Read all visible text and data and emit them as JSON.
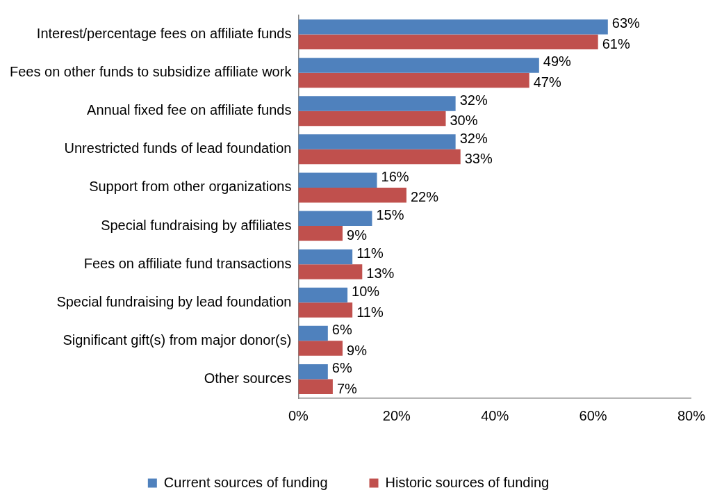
{
  "chart_data": {
    "type": "bar",
    "orientation": "horizontal",
    "categories": [
      "Interest/percentage fees on affiliate funds",
      "Fees on other funds to subsidize affiliate work",
      "Annual fixed fee on affiliate funds",
      "Unrestricted funds of lead foundation",
      "Support from other organizations",
      "Special fundraising by affiliates",
      "Fees on affiliate fund transactions",
      "Special fundraising by lead foundation",
      "Significant gift(s) from major donor(s)",
      "Other sources"
    ],
    "series": [
      {
        "name": "Current sources of funding",
        "color": "#4f81bd",
        "values": [
          63,
          49,
          32,
          32,
          16,
          15,
          11,
          10,
          6,
          6
        ],
        "value_labels": [
          "63%",
          "49%",
          "32%",
          "32%",
          "16%",
          "15%",
          "11%",
          "10%",
          "6%",
          "6%"
        ]
      },
      {
        "name": "Historic sources of funding",
        "color": "#c0504d",
        "values": [
          61,
          47,
          30,
          33,
          22,
          9,
          13,
          11,
          9,
          7
        ],
        "value_labels": [
          "61%",
          "47%",
          "30%",
          "33%",
          "22%",
          "9%",
          "13%",
          "11%",
          "9%",
          "7%"
        ]
      }
    ],
    "xlim": [
      0,
      80
    ],
    "xticks": [
      {
        "value": 0,
        "label": "0%"
      },
      {
        "value": 20,
        "label": "20%"
      },
      {
        "value": 40,
        "label": "40%"
      },
      {
        "value": 60,
        "label": "60%"
      },
      {
        "value": 80,
        "label": "80%"
      }
    ],
    "grid": false,
    "legend": "bottom"
  }
}
